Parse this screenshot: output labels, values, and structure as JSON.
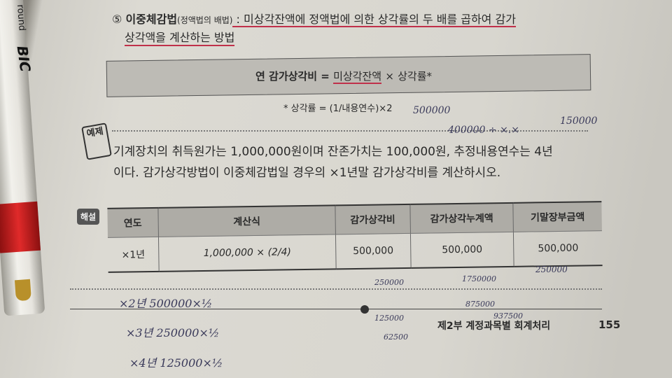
{
  "pen": {
    "brand": "BIC",
    "label": "round"
  },
  "section": {
    "number": "⑤",
    "title": "이중체감법",
    "subtitle": "(정액법의 배법)",
    "desc_line1": " : 미상각잔액에 정액법에 의한 상각률의 두 배를 곱하여 감가",
    "desc_line2": "상각액을 계산하는 방법"
  },
  "formula": {
    "lhs": "연 감가상각비 =",
    "term1": "미상각잔액",
    "times": "×",
    "term2": "상각률*"
  },
  "footnote": "* 상각률 = (1/내용연수)×2",
  "example": {
    "icon_label": "예제",
    "line1": "기계장치의 취득원가는 1,000,000원이며 잔존가치는 100,000원, 추정내용연수는 4년",
    "line2": "이다. 감가상각방법이 이중체감법일 경우의 ×1년말 감가상각비를 계산하시오."
  },
  "solution": {
    "badge": "해설",
    "headers": [
      "연도",
      "계산식",
      "감가상각비",
      "감가상각누계액",
      "기말장부금액"
    ],
    "rows": [
      [
        "×1년",
        "1,000,000 × (2/4)",
        "500,000",
        "500,000",
        "500,000"
      ]
    ]
  },
  "footer": {
    "chapter": "제2부 계정과목별 회계처리",
    "page": "155"
  },
  "handwriting": [
    "500000",
    "400000 ÷ ×.×",
    "150000",
    "×2년 500000×½",
    "×3년 250000×½",
    "×4년 125000×½",
    "250000",
    "125000",
    "62500",
    "1750000",
    "875000",
    "937500",
    "250000"
  ],
  "colors": {
    "underline": "#c0304a",
    "table_header": "#aeaca6",
    "paper": "#dcdad3"
  }
}
